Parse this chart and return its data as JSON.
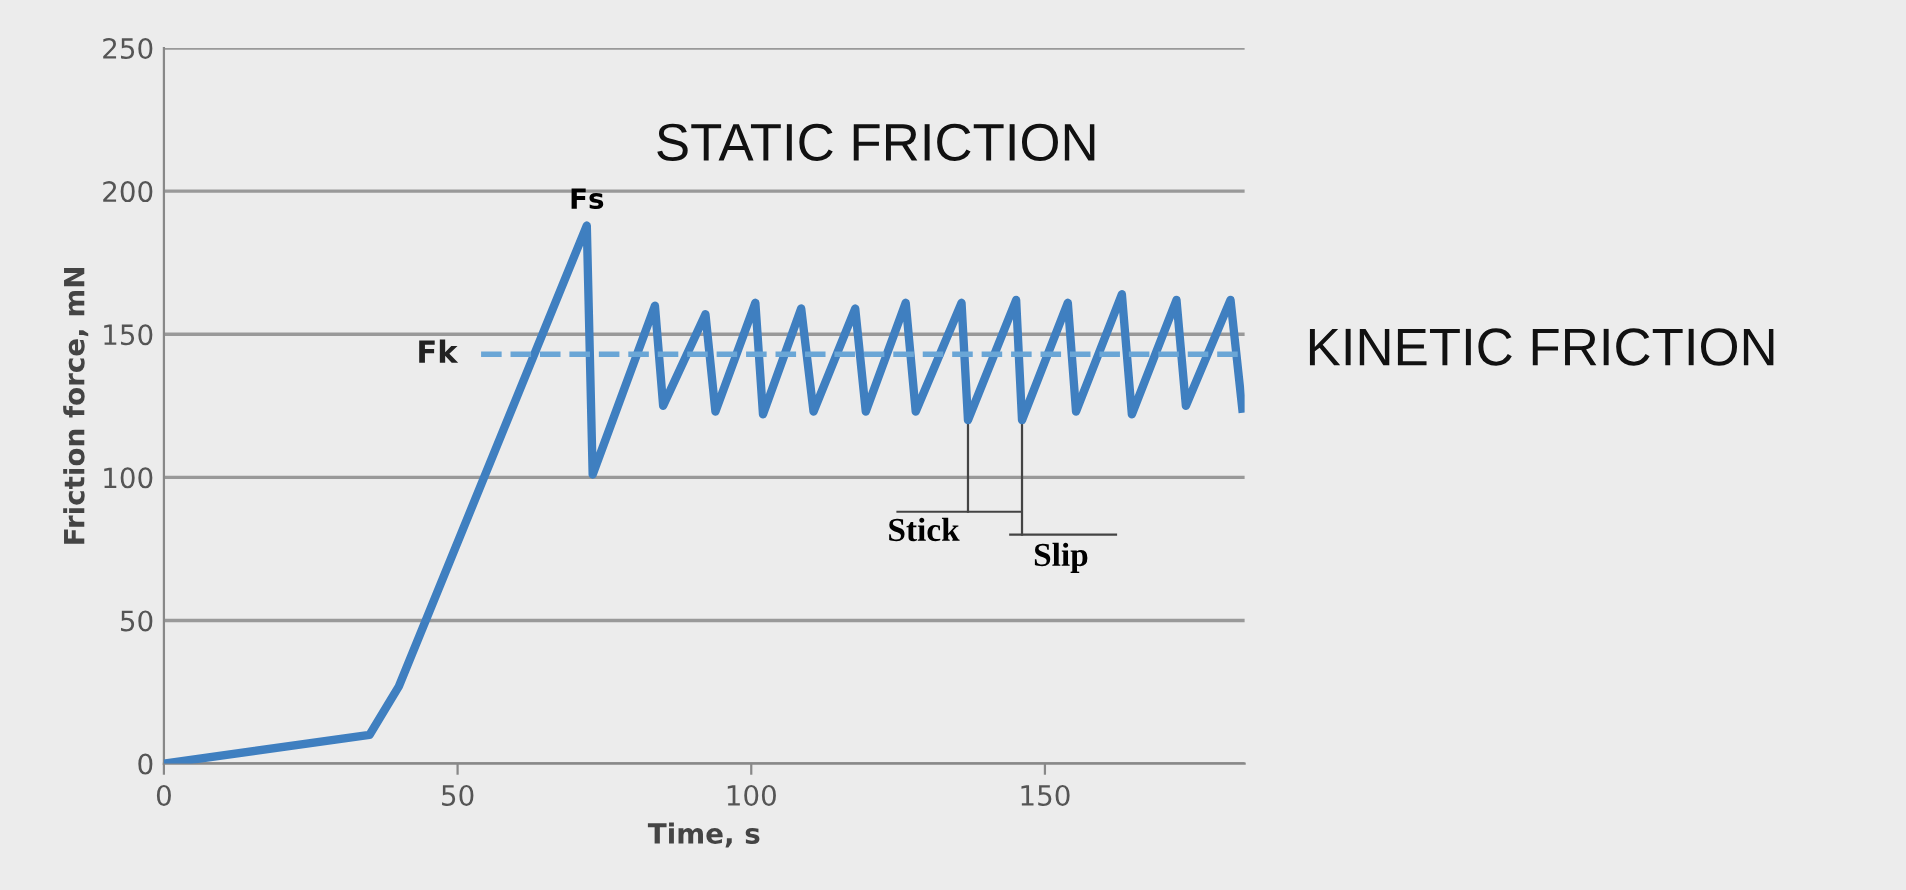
{
  "chart_data": {
    "type": "line",
    "xlabel": "Time, s",
    "ylabel": "Friction force, mN",
    "xlim": [
      0,
      184
    ],
    "xticks": [
      0,
      50,
      100,
      150
    ],
    "ylim": [
      0,
      250
    ],
    "yticks": [
      0,
      50,
      100,
      150,
      200,
      250
    ],
    "grid": "y",
    "marker": "none",
    "series": [
      {
        "color": "#3f7fc0",
        "line_style": "solid",
        "x": [
          0,
          35,
          40,
          72,
          73,
          83.6,
          85,
          92.2,
          93.9,
          100.7,
          102,
          108.5,
          110.6,
          117.7,
          119.5,
          126.3,
          128,
          135.8,
          136.9,
          145.1,
          146.1,
          153.9,
          155.3,
          163.1,
          164.8,
          172.4,
          174,
          181.6,
          183.6
        ],
        "values": [
          0,
          10,
          27,
          188,
          101,
          160,
          125,
          157,
          123,
          161,
          122,
          159,
          123,
          159,
          123,
          161,
          123,
          161,
          120,
          162,
          120,
          161,
          123,
          164,
          122,
          162,
          125,
          162,
          124
        ]
      },
      {
        "name": "Fk",
        "color": "#6aa6d6",
        "line_style": "dashed",
        "x": [
          54,
          184
        ],
        "values": [
          143,
          143
        ]
      }
    ],
    "annotations": [
      {
        "text": "Fs",
        "x": 72,
        "y": 188
      },
      {
        "text": "Stick",
        "x": 136.9,
        "y": 120
      },
      {
        "text": "Slip",
        "x": 146.1,
        "y": 120
      },
      "STATIC FRICTION",
      "KINETIC FRICTION"
    ]
  }
}
